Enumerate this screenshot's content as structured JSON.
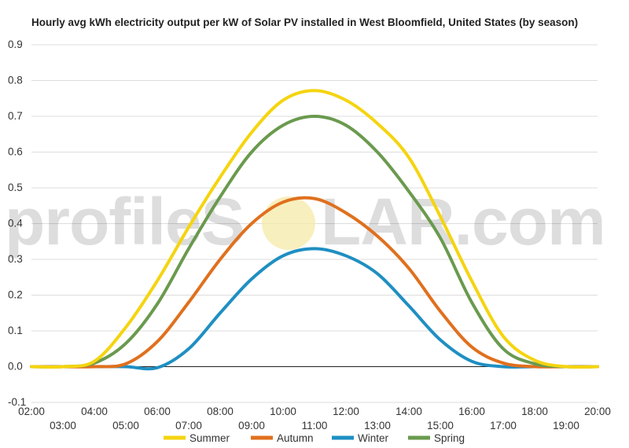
{
  "chart_data": {
    "type": "line",
    "title": "Hourly avg kWh electricity output per kW of Solar PV installed in West Bloomfield, United States (by season)",
    "xlabel": "",
    "ylabel": "",
    "x": [
      2,
      3,
      4,
      5,
      6,
      7,
      8,
      9,
      10,
      11,
      12,
      13,
      14,
      15,
      16,
      17,
      18,
      19,
      20
    ],
    "x_tick_labels": [
      "02:00",
      "03:00",
      "04:00",
      "05:00",
      "06:00",
      "07:00",
      "08:00",
      "09:00",
      "10:00",
      "11:00",
      "12:00",
      "13:00",
      "14:00",
      "15:00",
      "16:00",
      "17:00",
      "18:00",
      "19:00",
      "20:00"
    ],
    "y_ticks": [
      -0.1,
      0.0,
      0.1,
      0.2,
      0.3,
      0.4,
      0.5,
      0.6,
      0.7,
      0.8,
      0.9
    ],
    "y_tick_labels": [
      "-0.1",
      "0.0",
      "0.1",
      "0.2",
      "0.3",
      "0.4",
      "0.5",
      "0.6",
      "0.7",
      "0.8",
      "0.9"
    ],
    "ylim": [
      -0.1,
      0.9
    ],
    "xlim": [
      2,
      20
    ],
    "grid": true,
    "legend_position": "bottom",
    "series": [
      {
        "name": "Summer",
        "color": "#F5D40F",
        "values": [
          0,
          0,
          0.015,
          0.11,
          0.24,
          0.39,
          0.53,
          0.655,
          0.745,
          0.772,
          0.745,
          0.68,
          0.585,
          0.42,
          0.24,
          0.085,
          0.018,
          0,
          0
        ]
      },
      {
        "name": "Autumn",
        "color": "#E0701E",
        "values": [
          0,
          0,
          0,
          0.008,
          0.07,
          0.18,
          0.3,
          0.4,
          0.46,
          0.47,
          0.43,
          0.365,
          0.275,
          0.155,
          0.055,
          0.01,
          0,
          0,
          0
        ]
      },
      {
        "name": "Winter",
        "color": "#1F8FC2",
        "values": [
          0,
          0,
          0,
          0,
          -0.003,
          0.05,
          0.15,
          0.245,
          0.31,
          0.33,
          0.31,
          0.26,
          0.17,
          0.075,
          0.015,
          0,
          0,
          0,
          0
        ]
      },
      {
        "name": "Spring",
        "color": "#6A9A4E",
        "values": [
          0,
          0,
          0.01,
          0.065,
          0.175,
          0.33,
          0.475,
          0.6,
          0.675,
          0.7,
          0.675,
          0.6,
          0.49,
          0.36,
          0.18,
          0.05,
          0.008,
          0,
          0
        ]
      }
    ]
  },
  "watermark": {
    "text_left": "profileS",
    "text_right": "LAR.com",
    "sun_color": "#F5E9A8"
  }
}
